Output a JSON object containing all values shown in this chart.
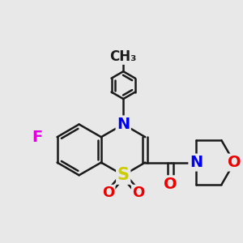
{
  "bg_color": "#e8e8e8",
  "bond_color": "#1a1a1a",
  "bond_width": 1.8,
  "atom_colors": {
    "C": "#1a1a1a",
    "N": "#0000ee",
    "O": "#ee0000",
    "S": "#cccc00",
    "F": "#dd00dd"
  },
  "xlim": [
    -2.1,
    2.8
  ],
  "ylim": [
    -1.6,
    2.8
  ]
}
